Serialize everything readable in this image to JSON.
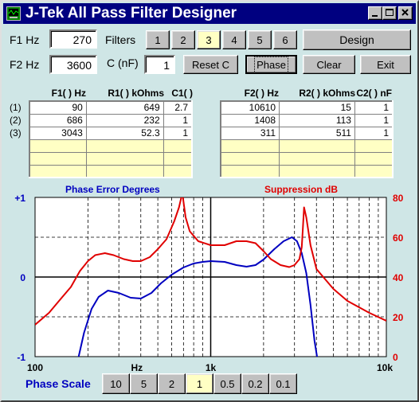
{
  "window": {
    "title": "J-Tek All Pass Filter Designer"
  },
  "titlebar_buttons": [
    "minimize-button",
    "maximize-button",
    "close-button"
  ],
  "inputs": {
    "f1_label": "F1 Hz",
    "f1_value": "270",
    "f2_label": "F2 Hz",
    "f2_value": "3600",
    "c_label": "C (nF)",
    "c_value": "1"
  },
  "filters": {
    "label": "Filters",
    "options": [
      "1",
      "2",
      "3",
      "4",
      "5",
      "6"
    ],
    "selected": "3"
  },
  "buttons": {
    "design": "Design",
    "reset_c": "Reset C",
    "phase": "Phase",
    "clear": "Clear",
    "exit": "Exit"
  },
  "table1": {
    "headers": [
      "F1( ) Hz",
      "R1( ) kOhms",
      "C1( ) nF"
    ],
    "rows": [
      [
        "90",
        "649",
        "2.7"
      ],
      [
        "686",
        "232",
        "1"
      ],
      [
        "3043",
        "52.3",
        "1"
      ],
      [
        "",
        "",
        ""
      ],
      [
        "",
        "",
        ""
      ],
      [
        "",
        "",
        ""
      ]
    ]
  },
  "table2": {
    "headers": [
      "F2( ) Hz",
      "R2( ) kOhms",
      "C2( ) nF"
    ],
    "rows": [
      [
        "10610",
        "15",
        "1"
      ],
      [
        "1408",
        "113",
        "1"
      ],
      [
        "311",
        "511",
        "1"
      ],
      [
        "",
        "",
        ""
      ],
      [
        "",
        "",
        ""
      ],
      [
        "",
        "",
        ""
      ]
    ]
  },
  "row_labels": [
    "(1)",
    "(2)",
    "(3)"
  ],
  "phase_scale": {
    "label": "Phase Scale",
    "options": [
      "10",
      "5",
      "2",
      "1",
      "0.5",
      "0.2",
      "0.1"
    ],
    "selected": "1"
  },
  "colors": {
    "titlebar": "#000080",
    "phase_series": "#0000c0",
    "suppression_series": "#e00000",
    "selected": "#ffffc4",
    "window_bg": "#cfe6e6"
  },
  "chart_data": {
    "type": "line",
    "title_left": "Phase Error Degrees",
    "title_right": "Suppression dB",
    "x_scale": "log",
    "xlim": [
      100,
      10000
    ],
    "x_tick_labels": [
      "100",
      "Hz",
      "1k",
      "10k"
    ],
    "y_left": {
      "lim": [
        -1,
        1
      ],
      "tick_labels": [
        "+1",
        "0",
        "-1"
      ]
    },
    "y_right": {
      "lim": [
        0,
        80
      ],
      "tick_labels": [
        "80",
        "60",
        "40",
        "20",
        "0"
      ]
    },
    "series": [
      {
        "name": "Phase Error Degrees",
        "axis": "left",
        "color": "#0000c0",
        "x": [
          175,
          190,
          210,
          230,
          260,
          300,
          350,
          400,
          460,
          520,
          600,
          700,
          800,
          900,
          1000,
          1200,
          1400,
          1600,
          1800,
          2000,
          2300,
          2600,
          2900,
          3100,
          3300,
          3500,
          3700,
          3900,
          4100
        ],
        "y": [
          -1.05,
          -0.7,
          -0.4,
          -0.25,
          -0.17,
          -0.2,
          -0.26,
          -0.27,
          -0.2,
          -0.08,
          0.03,
          0.12,
          0.17,
          0.19,
          0.2,
          0.19,
          0.15,
          0.13,
          0.15,
          0.22,
          0.35,
          0.45,
          0.5,
          0.45,
          0.3,
          0.05,
          -0.35,
          -0.8,
          -1.1
        ]
      },
      {
        "name": "Suppression dB",
        "axis": "right",
        "color": "#e00000",
        "x": [
          100,
          120,
          140,
          160,
          180,
          200,
          220,
          250,
          280,
          320,
          360,
          400,
          450,
          500,
          560,
          620,
          660,
          680,
          690,
          700,
          720,
          760,
          850,
          1000,
          1200,
          1400,
          1600,
          1800,
          2000,
          2200,
          2500,
          2800,
          3000,
          3200,
          3300,
          3350,
          3400,
          3500,
          3700,
          4000,
          5000,
          6000,
          8000,
          10000
        ],
        "y": [
          16,
          22,
          29,
          35,
          43,
          48,
          51,
          52,
          51,
          49,
          48,
          48,
          50,
          54,
          59,
          68,
          75,
          80,
          82,
          78,
          70,
          63,
          58,
          56,
          56,
          58,
          58,
          57,
          53,
          49,
          46,
          45,
          46,
          49,
          55,
          65,
          75,
          70,
          56,
          44,
          34,
          28,
          22,
          18
        ]
      }
    ]
  }
}
